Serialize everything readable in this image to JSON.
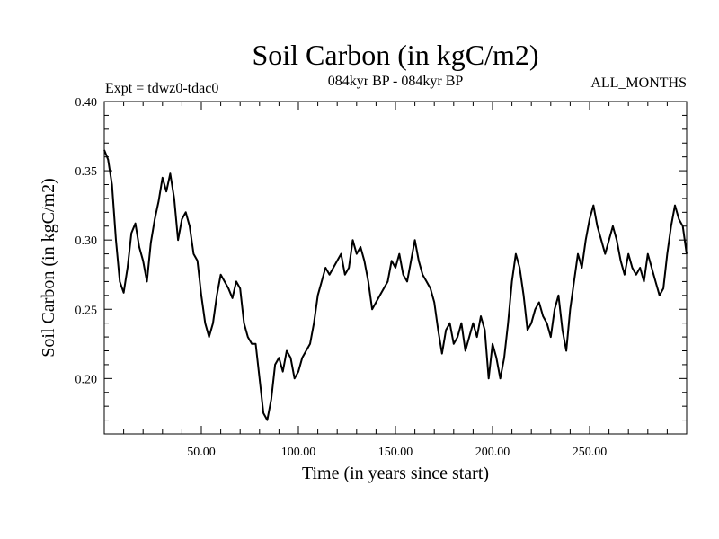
{
  "chart_data": {
    "type": "line",
    "title": "Soil Carbon (in kgC/m2)",
    "subtitle_left": "Expt = tdwz0-tdac0",
    "subtitle_center": "084kyr BP - 084kyr BP",
    "subtitle_right": "ALL_MONTHS",
    "xlabel": "Time (in years since start)",
    "ylabel": "Soil Carbon (in kgC/m2)",
    "xlim": [
      0,
      300
    ],
    "ylim": [
      0.16,
      0.4
    ],
    "xticks": [
      50,
      100,
      150,
      200,
      250
    ],
    "xtick_labels": [
      "50.00",
      "100.00",
      "150.00",
      "200.00",
      "250.00"
    ],
    "yticks": [
      0.2,
      0.25,
      0.3,
      0.35,
      0.4
    ],
    "ytick_labels": [
      "0.20",
      "0.25",
      "0.30",
      "0.35",
      "0.40"
    ],
    "grid": false,
    "line_color": "#000000",
    "series": [
      {
        "x": [
          0,
          2,
          4,
          6,
          8,
          10,
          12,
          14,
          16,
          18,
          20,
          22,
          24,
          26,
          28,
          30,
          32,
          34,
          36,
          38,
          40,
          42,
          44,
          46,
          48,
          50,
          52,
          54,
          56,
          58,
          60,
          62,
          64,
          66,
          68,
          70,
          72,
          74,
          76,
          78,
          80,
          82,
          84,
          86,
          88,
          90,
          92,
          94,
          96,
          98,
          100,
          102,
          104,
          106,
          108,
          110,
          112,
          114,
          116,
          118,
          120,
          122,
          124,
          126,
          128,
          130,
          132,
          134,
          136,
          138,
          140,
          142,
          144,
          146,
          148,
          150,
          152,
          154,
          156,
          158,
          160,
          162,
          164,
          166,
          168,
          170,
          172,
          174,
          176,
          178,
          180,
          182,
          184,
          186,
          188,
          190,
          192,
          194,
          196,
          198,
          200,
          202,
          204,
          206,
          208,
          210,
          212,
          214,
          216,
          218,
          220,
          222,
          224,
          226,
          228,
          230,
          232,
          234,
          236,
          238,
          240,
          242,
          244,
          246,
          248,
          250,
          252,
          254,
          256,
          258,
          260,
          262,
          264,
          266,
          268,
          270,
          272,
          274,
          276,
          278,
          280,
          282,
          284,
          286,
          288,
          290,
          292,
          294,
          296,
          298,
          300
        ],
        "y": [
          0.365,
          0.358,
          0.34,
          0.3,
          0.27,
          0.262,
          0.28,
          0.305,
          0.312,
          0.295,
          0.285,
          0.27,
          0.298,
          0.315,
          0.328,
          0.345,
          0.335,
          0.348,
          0.33,
          0.3,
          0.315,
          0.32,
          0.31,
          0.29,
          0.285,
          0.26,
          0.24,
          0.23,
          0.24,
          0.26,
          0.275,
          0.27,
          0.265,
          0.258,
          0.27,
          0.265,
          0.24,
          0.23,
          0.225,
          0.225,
          0.2,
          0.175,
          0.17,
          0.185,
          0.21,
          0.215,
          0.205,
          0.22,
          0.215,
          0.2,
          0.205,
          0.215,
          0.22,
          0.225,
          0.24,
          0.26,
          0.27,
          0.28,
          0.275,
          0.28,
          0.285,
          0.29,
          0.275,
          0.28,
          0.3,
          0.29,
          0.295,
          0.285,
          0.27,
          0.25,
          0.255,
          0.26,
          0.265,
          0.27,
          0.285,
          0.28,
          0.29,
          0.275,
          0.27,
          0.285,
          0.3,
          0.285,
          0.275,
          0.27,
          0.265,
          0.255,
          0.235,
          0.218,
          0.235,
          0.24,
          0.225,
          0.23,
          0.24,
          0.22,
          0.23,
          0.24,
          0.23,
          0.245,
          0.235,
          0.2,
          0.225,
          0.215,
          0.2,
          0.215,
          0.24,
          0.27,
          0.29,
          0.28,
          0.26,
          0.235,
          0.24,
          0.25,
          0.255,
          0.245,
          0.24,
          0.23,
          0.25,
          0.26,
          0.235,
          0.22,
          0.25,
          0.27,
          0.29,
          0.28,
          0.3,
          0.315,
          0.325,
          0.31,
          0.3,
          0.29,
          0.3,
          0.31,
          0.3,
          0.285,
          0.275,
          0.29,
          0.28,
          0.275,
          0.28,
          0.27,
          0.29,
          0.28,
          0.27,
          0.26,
          0.265,
          0.29,
          0.31,
          0.325,
          0.315,
          0.31,
          0.29
        ]
      }
    ]
  }
}
